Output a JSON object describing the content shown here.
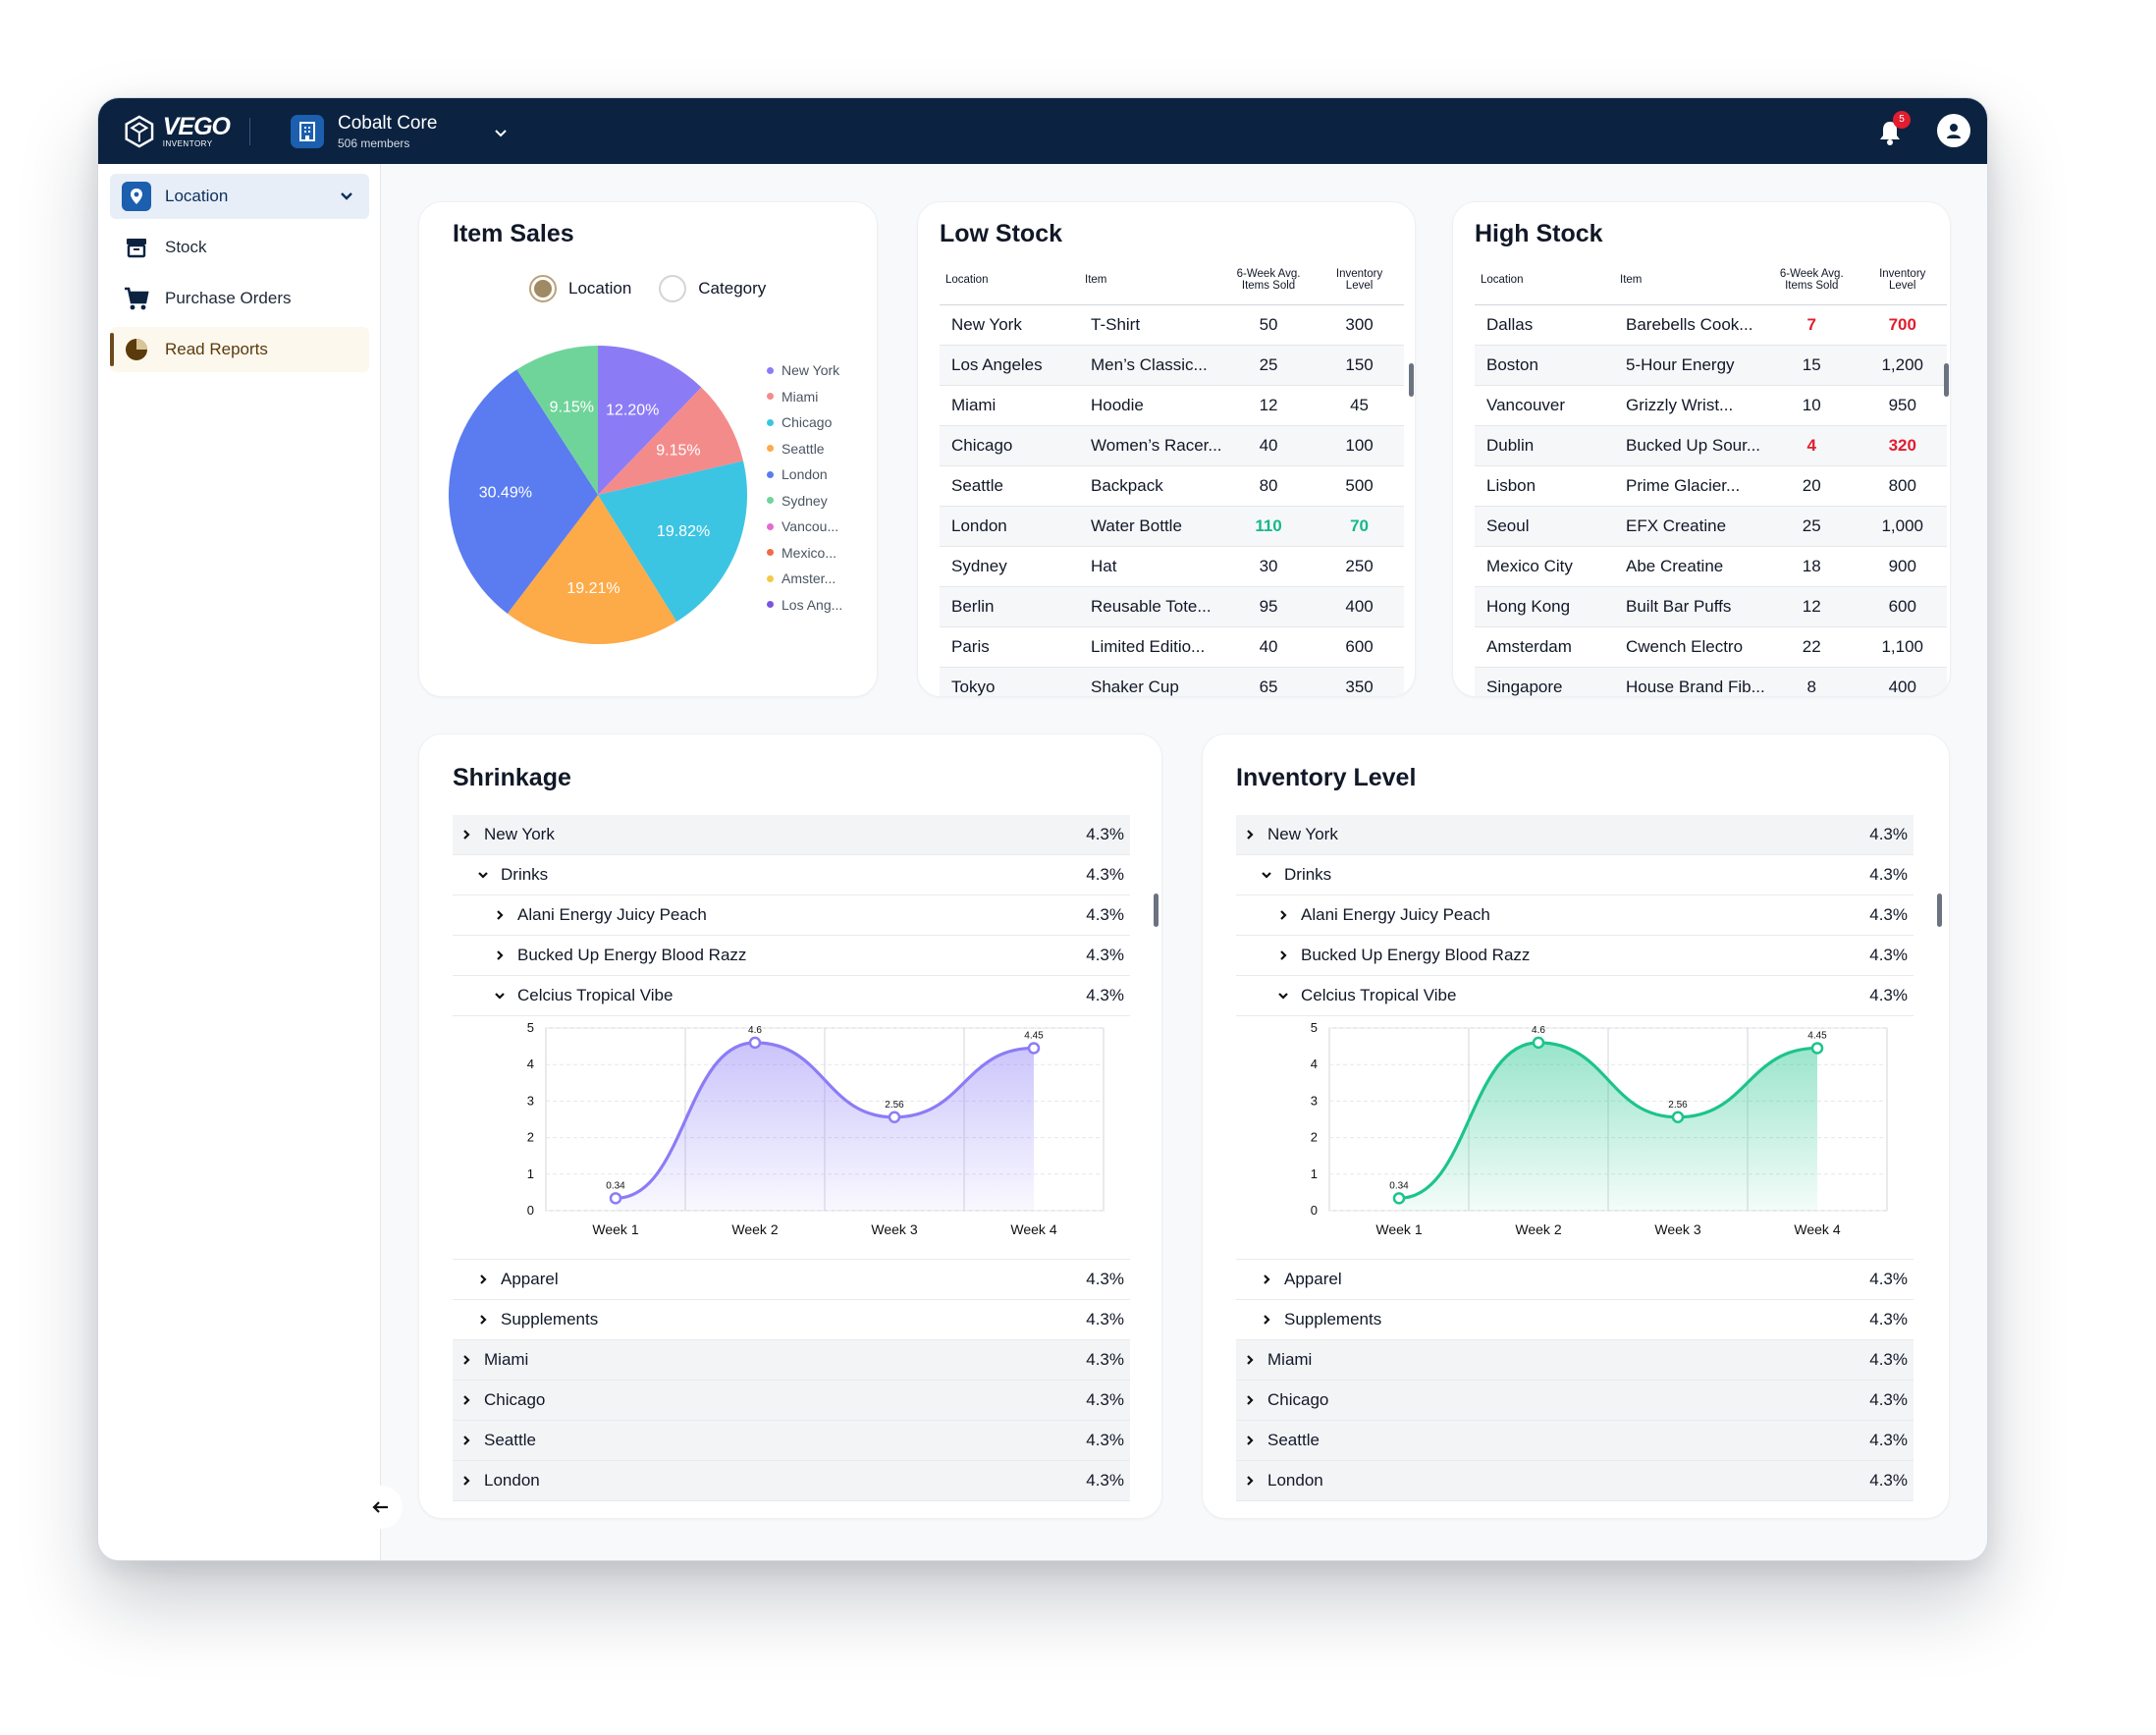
{
  "app": {
    "logo_text": "VEGO",
    "logo_sub": "INVENTORY",
    "org_name": "Cobalt Core",
    "org_members": "506 members",
    "notifications": "5"
  },
  "sidebar": {
    "items": [
      {
        "label": "Location"
      },
      {
        "label": "Stock"
      },
      {
        "label": "Purchase Orders"
      },
      {
        "label": "Read Reports"
      }
    ]
  },
  "item_sales": {
    "title": "Item Sales",
    "options": [
      "Location",
      "Category"
    ],
    "selected": "Location",
    "chart_data": {
      "type": "pie",
      "slices": [
        {
          "label": "New York",
          "value": 12.2,
          "display": "12.20%",
          "color": "#8b7cf6"
        },
        {
          "label": "Miami",
          "value": 9.15,
          "display": "9.15%",
          "color": "#f48b8b"
        },
        {
          "label": "Chicago",
          "value": 19.82,
          "display": "19.82%",
          "color": "#3cc4e3"
        },
        {
          "label": "Seattle",
          "value": 19.21,
          "display": "19.21%",
          "color": "#fdaa48"
        },
        {
          "label": "London",
          "value": 30.49,
          "display": "30.49%",
          "color": "#5a7cf0"
        },
        {
          "label": "Sydney",
          "value": 9.15,
          "display": "9.15%",
          "color": "#6fd49a"
        }
      ],
      "legend": [
        {
          "label": "New York",
          "color": "#8b7cf6"
        },
        {
          "label": "Miami",
          "color": "#f48b8b"
        },
        {
          "label": "Chicago",
          "color": "#3cc4e3"
        },
        {
          "label": "Seattle",
          "color": "#fdaa48"
        },
        {
          "label": "London",
          "color": "#5a7cf0"
        },
        {
          "label": "Sydney",
          "color": "#6fd49a"
        },
        {
          "label": "Vancou...",
          "color": "#e26bd0"
        },
        {
          "label": "Mexico...",
          "color": "#ef6b4a"
        },
        {
          "label": "Amster...",
          "color": "#f2c94c"
        },
        {
          "label": "Los Ang...",
          "color": "#7b55e0"
        }
      ]
    }
  },
  "low_stock": {
    "title": "Low Stock",
    "headers": [
      "Location",
      "Item",
      "6-Week Avg.\nItems Sold",
      "Inventory\nLevel"
    ],
    "rows": [
      [
        "New York",
        "T-Shirt",
        "50",
        "300"
      ],
      [
        "Los Angeles",
        "Men’s Classic...",
        "25",
        "150"
      ],
      [
        "Miami",
        "Hoodie",
        "12",
        "45"
      ],
      [
        "Chicago",
        "Women’s Racer...",
        "40",
        "100"
      ],
      [
        "Seattle",
        "Backpack",
        "80",
        "500"
      ],
      [
        "London",
        "Water Bottle",
        "110",
        "70"
      ],
      [
        "Sydney",
        "Hat",
        "30",
        "250"
      ],
      [
        "Berlin",
        "Reusable Tote...",
        "95",
        "400"
      ],
      [
        "Paris",
        "Limited Editio...",
        "40",
        "600"
      ],
      [
        "Tokyo",
        "Shaker Cup",
        "65",
        "350"
      ]
    ]
  },
  "high_stock": {
    "title": "High Stock",
    "headers": [
      "Location",
      "Item",
      "6-Week Avg.\nItems Sold",
      "Inventory\nLevel"
    ],
    "rows": [
      [
        "Dallas",
        "Barebells Cook...",
        "7",
        "700"
      ],
      [
        "Boston",
        "5-Hour Energy",
        "15",
        "1,200"
      ],
      [
        "Vancouver",
        "Grizzly Wrist...",
        "10",
        "950"
      ],
      [
        "Dublin",
        "Bucked Up Sour...",
        "4",
        "320"
      ],
      [
        "Lisbon",
        "Prime Glacier...",
        "20",
        "800"
      ],
      [
        "Seoul",
        "EFX Creatine",
        "25",
        "1,000"
      ],
      [
        "Mexico City",
        "Abe Creatine",
        "18",
        "900"
      ],
      [
        "Hong Kong",
        "Built Bar Puffs",
        "12",
        "600"
      ],
      [
        "Amsterdam",
        "Cwench Electro",
        "22",
        "1,100"
      ],
      [
        "Singapore",
        "House Brand Fib...",
        "8",
        "400"
      ]
    ]
  },
  "shrinkage": {
    "title": "Shrinkage",
    "rows_top": [
      {
        "label": "New York",
        "value": "4.3%",
        "level": 0,
        "open": false
      },
      {
        "label": "Drinks",
        "value": "4.3%",
        "level": 1,
        "open": true
      },
      {
        "label": "Alani Energy Juicy Peach",
        "value": "4.3%",
        "level": 2,
        "open": false
      },
      {
        "label": "Bucked Up Energy Blood Razz",
        "value": "4.3%",
        "level": 2,
        "open": false
      },
      {
        "label": "Celcius Tropical Vibe",
        "value": "4.3%",
        "level": 2,
        "open": true
      }
    ],
    "rows_bottom": [
      {
        "label": "Apparel",
        "value": "4.3%",
        "level": 1,
        "open": false
      },
      {
        "label": "Supplements",
        "value": "4.3%",
        "level": 1,
        "open": false
      },
      {
        "label": "Miami",
        "value": "4.3%",
        "level": 0,
        "open": false
      },
      {
        "label": "Chicago",
        "value": "4.3%",
        "level": 0,
        "open": false
      },
      {
        "label": "Seattle",
        "value": "4.3%",
        "level": 0,
        "open": false
      },
      {
        "label": "London",
        "value": "4.3%",
        "level": 0,
        "open": false
      }
    ],
    "chart_data": {
      "type": "area",
      "categories": [
        "Week 1",
        "Week 2",
        "Week 3",
        "Week 4"
      ],
      "values": [
        0.34,
        4.6,
        2.56,
        4.45
      ],
      "ylim": [
        0,
        5
      ],
      "yticks": [
        "0",
        "1",
        "2",
        "3",
        "4",
        "5"
      ],
      "color": "#8b7cf6",
      "grid": true
    }
  },
  "inventory_level": {
    "title": "Inventory Level",
    "rows_top": [
      {
        "label": "New York",
        "value": "4.3%",
        "level": 0,
        "open": false
      },
      {
        "label": "Drinks",
        "value": "4.3%",
        "level": 1,
        "open": true
      },
      {
        "label": "Alani Energy Juicy Peach",
        "value": "4.3%",
        "level": 2,
        "open": false
      },
      {
        "label": "Bucked Up Energy Blood Razz",
        "value": "4.3%",
        "level": 2,
        "open": false
      },
      {
        "label": "Celcius Tropical Vibe",
        "value": "4.3%",
        "level": 2,
        "open": true
      }
    ],
    "rows_bottom": [
      {
        "label": "Apparel",
        "value": "4.3%",
        "level": 1,
        "open": false
      },
      {
        "label": "Supplements",
        "value": "4.3%",
        "level": 1,
        "open": false
      },
      {
        "label": "Miami",
        "value": "4.3%",
        "level": 0,
        "open": false
      },
      {
        "label": "Chicago",
        "value": "4.3%",
        "level": 0,
        "open": false
      },
      {
        "label": "Seattle",
        "value": "4.3%",
        "level": 0,
        "open": false
      },
      {
        "label": "London",
        "value": "4.3%",
        "level": 0,
        "open": false
      }
    ],
    "chart_data": {
      "type": "area",
      "categories": [
        "Week 1",
        "Week 2",
        "Week 3",
        "Week 4"
      ],
      "values": [
        0.34,
        4.6,
        2.56,
        4.45
      ],
      "ylim": [
        0,
        5
      ],
      "yticks": [
        "0",
        "1",
        "2",
        "3",
        "4",
        "5"
      ],
      "color": "#1cc48a",
      "grid": true
    }
  }
}
